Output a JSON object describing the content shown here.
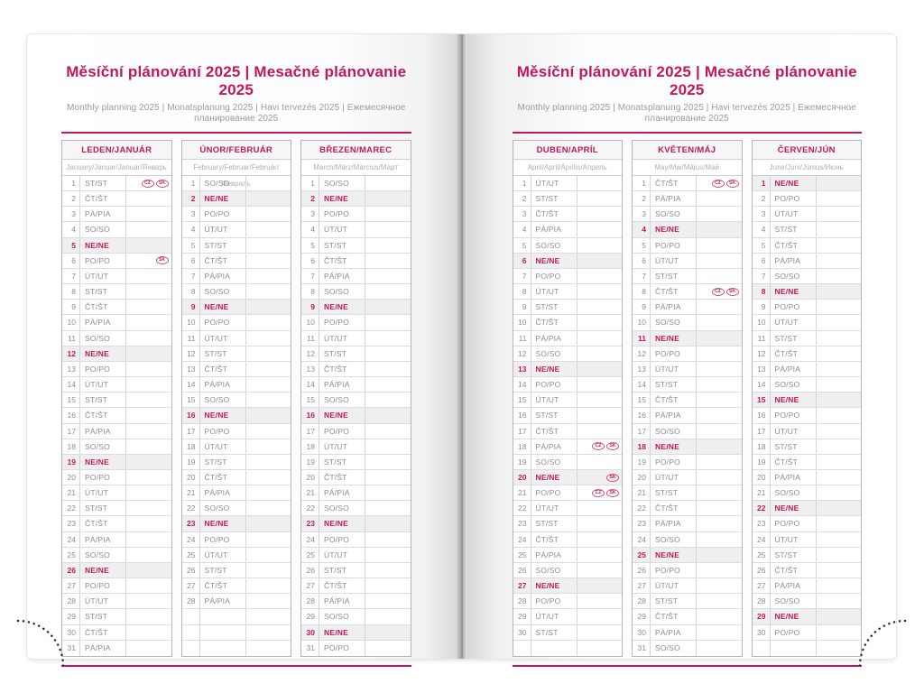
{
  "title": "Měsíční plánování 2025 | Mesačné plánovanie 2025",
  "subtitle": "Monthly planning 2025 | Monatsplanung 2025 | Havi tervezés 2025 | Ежемесячное планирование 2025",
  "colors": {
    "accent_pink": "#c2185b",
    "sunday_row_bg": "#efefef",
    "day_text_gray": "#8d8d8d",
    "table_border_gray": "#b5b5b5"
  },
  "weekday_labels": {
    "mon": "PO/PO",
    "tue": "ÚT/UT",
    "wed": "ST/ST",
    "thu": "ČT/ŠT",
    "fri": "PÁ/PIA",
    "sat": "SO/SO",
    "sun": "NE/NE"
  },
  "holiday_badges": [
    "CZ",
    "SK"
  ],
  "pages": [
    {
      "side": "left",
      "months": [
        {
          "name": "LEDEN/JANUÁR",
          "languages": "January/Januar/Január/Январь",
          "trailing_empty_rows": 0,
          "days": [
            [
              1,
              "ST/ST",
              [
                "CZ",
                "SK"
              ]
            ],
            [
              2,
              "ČT/ŠT"
            ],
            [
              3,
              "PÁ/PIA"
            ],
            [
              4,
              "SO/SO"
            ],
            [
              5,
              "NE/NE"
            ],
            [
              6,
              "PO/PO",
              [
                "SK"
              ]
            ],
            [
              7,
              "ÚT/UT"
            ],
            [
              8,
              "ST/ST"
            ],
            [
              9,
              "ČT/ŠT"
            ],
            [
              10,
              "PÁ/PIA"
            ],
            [
              11,
              "SO/SO"
            ],
            [
              12,
              "NE/NE"
            ],
            [
              13,
              "PO/PO"
            ],
            [
              14,
              "ÚT/UT"
            ],
            [
              15,
              "ST/ST"
            ],
            [
              16,
              "ČT/ŠT"
            ],
            [
              17,
              "PÁ/PIA"
            ],
            [
              18,
              "SO/SO"
            ],
            [
              19,
              "NE/NE"
            ],
            [
              20,
              "PO/PO"
            ],
            [
              21,
              "ÚT/UT"
            ],
            [
              22,
              "ST/ST"
            ],
            [
              23,
              "ČT/ŠT"
            ],
            [
              24,
              "PÁ/PIA"
            ],
            [
              25,
              "SO/SO"
            ],
            [
              26,
              "NE/NE"
            ],
            [
              27,
              "PO/PO"
            ],
            [
              28,
              "ÚT/UT"
            ],
            [
              29,
              "ST/ST"
            ],
            [
              30,
              "ČT/ŠT"
            ],
            [
              31,
              "PÁ/PIA"
            ]
          ]
        },
        {
          "name": "ÚNOR/FEBRUÁR",
          "languages": "February/Februar/Február/Февраль",
          "trailing_empty_rows": 3,
          "days": [
            [
              1,
              "SO/SO"
            ],
            [
              2,
              "NE/NE"
            ],
            [
              3,
              "PO/PO"
            ],
            [
              4,
              "ÚT/UT"
            ],
            [
              5,
              "ST/ST"
            ],
            [
              6,
              "ČT/ŠT"
            ],
            [
              7,
              "PÁ/PIA"
            ],
            [
              8,
              "SO/SO"
            ],
            [
              9,
              "NE/NE"
            ],
            [
              10,
              "PO/PO"
            ],
            [
              11,
              "ÚT/UT"
            ],
            [
              12,
              "ST/ST"
            ],
            [
              13,
              "ČT/ŠT"
            ],
            [
              14,
              "PÁ/PIA"
            ],
            [
              15,
              "SO/SO"
            ],
            [
              16,
              "NE/NE"
            ],
            [
              17,
              "PO/PO"
            ],
            [
              18,
              "ÚT/UT"
            ],
            [
              19,
              "ST/ST"
            ],
            [
              20,
              "ČT/ŠT"
            ],
            [
              21,
              "PÁ/PIA"
            ],
            [
              22,
              "SO/SO"
            ],
            [
              23,
              "NE/NE"
            ],
            [
              24,
              "PO/PO"
            ],
            [
              25,
              "ÚT/UT"
            ],
            [
              26,
              "ST/ST"
            ],
            [
              27,
              "ČT/ŠT"
            ],
            [
              28,
              "PÁ/PIA"
            ]
          ]
        },
        {
          "name": "BŘEZEN/MAREC",
          "languages": "March/März/Március/Март",
          "trailing_empty_rows": 0,
          "days": [
            [
              1,
              "SO/SO"
            ],
            [
              2,
              "NE/NE"
            ],
            [
              3,
              "PO/PO"
            ],
            [
              4,
              "ÚT/UT"
            ],
            [
              5,
              "ST/ST"
            ],
            [
              6,
              "ČT/ŠT"
            ],
            [
              7,
              "PÁ/PIA"
            ],
            [
              8,
              "SO/SO"
            ],
            [
              9,
              "NE/NE"
            ],
            [
              10,
              "PO/PO"
            ],
            [
              11,
              "ÚT/UT"
            ],
            [
              12,
              "ST/ST"
            ],
            [
              13,
              "ČT/ŠT"
            ],
            [
              14,
              "PÁ/PIA"
            ],
            [
              15,
              "SO/SO"
            ],
            [
              16,
              "NE/NE"
            ],
            [
              17,
              "PO/PO"
            ],
            [
              18,
              "ÚT/UT"
            ],
            [
              19,
              "ST/ST"
            ],
            [
              20,
              "ČT/ŠT"
            ],
            [
              21,
              "PÁ/PIA"
            ],
            [
              22,
              "SO/SO"
            ],
            [
              23,
              "NE/NE"
            ],
            [
              24,
              "PO/PO"
            ],
            [
              25,
              "ÚT/UT"
            ],
            [
              26,
              "ST/ST"
            ],
            [
              27,
              "ČT/ŠT"
            ],
            [
              28,
              "PÁ/PIA"
            ],
            [
              29,
              "SO/SO"
            ],
            [
              30,
              "NE/NE"
            ],
            [
              31,
              "PO/PO"
            ]
          ]
        }
      ]
    },
    {
      "side": "right",
      "months": [
        {
          "name": "DUBEN/APRÍL",
          "languages": "April/April/Április/Апрель",
          "trailing_empty_rows": 1,
          "days": [
            [
              1,
              "ÚT/UT"
            ],
            [
              2,
              "ST/ST"
            ],
            [
              3,
              "ČT/ŠT"
            ],
            [
              4,
              "PÁ/PIA"
            ],
            [
              5,
              "SO/SO"
            ],
            [
              6,
              "NE/NE"
            ],
            [
              7,
              "PO/PO"
            ],
            [
              8,
              "ÚT/UT"
            ],
            [
              9,
              "ST/ST"
            ],
            [
              10,
              "ČT/ŠT"
            ],
            [
              11,
              "PÁ/PIA"
            ],
            [
              12,
              "SO/SO"
            ],
            [
              13,
              "NE/NE"
            ],
            [
              14,
              "PO/PO"
            ],
            [
              15,
              "ÚT/UT"
            ],
            [
              16,
              "ST/ST"
            ],
            [
              17,
              "ČT/ŠT"
            ],
            [
              18,
              "PÁ/PIA",
              [
                "CZ",
                "SK"
              ]
            ],
            [
              19,
              "SO/SO"
            ],
            [
              20,
              "NE/NE",
              [
                "SK"
              ]
            ],
            [
              21,
              "PO/PO",
              [
                "CZ",
                "SK"
              ]
            ],
            [
              22,
              "ÚT/UT"
            ],
            [
              23,
              "ST/ST"
            ],
            [
              24,
              "ČT/ŠT"
            ],
            [
              25,
              "PÁ/PIA"
            ],
            [
              26,
              "SO/SO"
            ],
            [
              27,
              "NE/NE"
            ],
            [
              28,
              "PO/PO"
            ],
            [
              29,
              "ÚT/UT"
            ],
            [
              30,
              "ST/ST"
            ]
          ]
        },
        {
          "name": "KVĚTEN/MÁJ",
          "languages": "May/Mai/Május/Май",
          "trailing_empty_rows": 0,
          "days": [
            [
              1,
              "ČT/ŠT",
              [
                "CZ",
                "SK"
              ]
            ],
            [
              2,
              "PÁ/PIA"
            ],
            [
              3,
              "SO/SO"
            ],
            [
              4,
              "NE/NE"
            ],
            [
              5,
              "PO/PO"
            ],
            [
              6,
              "ÚT/UT"
            ],
            [
              7,
              "ST/ST"
            ],
            [
              8,
              "ČT/ŠT",
              [
                "CZ",
                "SK"
              ]
            ],
            [
              9,
              "PÁ/PIA"
            ],
            [
              10,
              "SO/SO"
            ],
            [
              11,
              "NE/NE"
            ],
            [
              12,
              "PO/PO"
            ],
            [
              13,
              "ÚT/UT"
            ],
            [
              14,
              "ST/ST"
            ],
            [
              15,
              "ČT/ŠT"
            ],
            [
              16,
              "PÁ/PIA"
            ],
            [
              17,
              "SO/SO"
            ],
            [
              18,
              "NE/NE"
            ],
            [
              19,
              "PO/PO"
            ],
            [
              20,
              "ÚT/UT"
            ],
            [
              21,
              "ST/ST"
            ],
            [
              22,
              "ČT/ŠT"
            ],
            [
              23,
              "PÁ/PIA"
            ],
            [
              24,
              "SO/SO"
            ],
            [
              25,
              "NE/NE"
            ],
            [
              26,
              "PO/PO"
            ],
            [
              27,
              "ÚT/UT"
            ],
            [
              28,
              "ST/ST"
            ],
            [
              29,
              "ČT/ŠT"
            ],
            [
              30,
              "PÁ/PIA"
            ],
            [
              31,
              "SO/SO"
            ]
          ]
        },
        {
          "name": "ČERVEN/JÚN",
          "languages": "June/Juni/Június/Июнь",
          "trailing_empty_rows": 1,
          "days": [
            [
              1,
              "NE/NE"
            ],
            [
              2,
              "PO/PO"
            ],
            [
              3,
              "ÚT/UT"
            ],
            [
              4,
              "ST/ST"
            ],
            [
              5,
              "ČT/ŠT"
            ],
            [
              6,
              "PÁ/PIA"
            ],
            [
              7,
              "SO/SO"
            ],
            [
              8,
              "NE/NE"
            ],
            [
              9,
              "PO/PO"
            ],
            [
              10,
              "ÚT/UT"
            ],
            [
              11,
              "ST/ST"
            ],
            [
              12,
              "ČT/ŠT"
            ],
            [
              13,
              "PÁ/PIA"
            ],
            [
              14,
              "SO/SO"
            ],
            [
              15,
              "NE/NE"
            ],
            [
              16,
              "PO/PO"
            ],
            [
              17,
              "ÚT/UT"
            ],
            [
              18,
              "ST/ST"
            ],
            [
              19,
              "ČT/ŠT"
            ],
            [
              20,
              "PÁ/PIA"
            ],
            [
              21,
              "SO/SO"
            ],
            [
              22,
              "NE/NE"
            ],
            [
              23,
              "PO/PO"
            ],
            [
              24,
              "ÚT/UT"
            ],
            [
              25,
              "ST/ST"
            ],
            [
              26,
              "ČT/ŠT"
            ],
            [
              27,
              "PÁ/PIA"
            ],
            [
              28,
              "SO/SO"
            ],
            [
              29,
              "NE/NE"
            ],
            [
              30,
              "PO/PO"
            ]
          ]
        }
      ]
    }
  ]
}
